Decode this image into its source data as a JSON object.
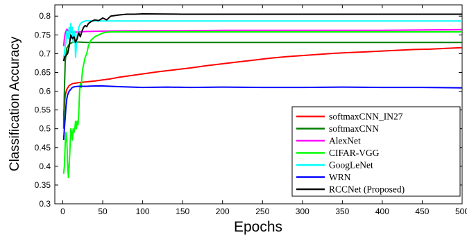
{
  "chart_data": {
    "type": "line",
    "xlabel": "Epochs",
    "ylabel": "Classification Accuracy",
    "xlim": [
      -10,
      500
    ],
    "ylim": [
      0.3,
      0.83
    ],
    "xticks": [
      0,
      50,
      100,
      150,
      200,
      250,
      300,
      350,
      400,
      450,
      500
    ],
    "yticks": [
      0.3,
      0.35,
      0.4,
      0.45,
      0.5,
      0.55,
      0.6,
      0.65,
      0.7,
      0.75,
      0.8
    ],
    "xtick_labels": [
      "0",
      "50",
      "100",
      "150",
      "200",
      "250",
      "300",
      "350",
      "400",
      "450",
      "500"
    ],
    "ytick_labels": [
      "0.3",
      "0.35",
      "0.4",
      "0.45",
      "0.5",
      "0.55",
      "0.6",
      "0.65",
      "0.7",
      "0.75",
      "0.8"
    ],
    "grid": false,
    "legend_position": "bottom-right",
    "series": [
      {
        "name": "softmaxCNN_IN27",
        "color": "#ff0000",
        "x": [
          1,
          2,
          3,
          5,
          8,
          12,
          20,
          30,
          40,
          50,
          60,
          70,
          80,
          90,
          100,
          120,
          140,
          160,
          180,
          200,
          220,
          240,
          260,
          280,
          300,
          320,
          340,
          360,
          380,
          400,
          420,
          440,
          460,
          480,
          500
        ],
        "y": [
          0.535,
          0.56,
          0.59,
          0.605,
          0.615,
          0.62,
          0.623,
          0.625,
          0.627,
          0.63,
          0.633,
          0.637,
          0.64,
          0.643,
          0.646,
          0.652,
          0.657,
          0.662,
          0.668,
          0.673,
          0.678,
          0.683,
          0.688,
          0.692,
          0.695,
          0.698,
          0.701,
          0.703,
          0.705,
          0.707,
          0.709,
          0.711,
          0.712,
          0.714,
          0.716
        ]
      },
      {
        "name": "softmaxCNN",
        "color": "#007f00",
        "x": [
          1,
          2,
          3,
          5,
          8,
          12,
          15,
          20,
          30,
          50,
          100,
          150,
          200,
          250,
          300,
          350,
          400,
          450,
          500
        ],
        "y": [
          0.5,
          0.6,
          0.68,
          0.715,
          0.725,
          0.73,
          0.731,
          0.731,
          0.73,
          0.73,
          0.73,
          0.73,
          0.73,
          0.73,
          0.73,
          0.73,
          0.73,
          0.73,
          0.73
        ]
      },
      {
        "name": "AlexNet",
        "color": "#ff00ff",
        "x": [
          1,
          2,
          3,
          5,
          7,
          10,
          15,
          20,
          30,
          50,
          100,
          150,
          200,
          250,
          300,
          350,
          400,
          450,
          500
        ],
        "y": [
          0.72,
          0.74,
          0.755,
          0.765,
          0.76,
          0.758,
          0.757,
          0.758,
          0.759,
          0.76,
          0.761,
          0.761,
          0.762,
          0.762,
          0.762,
          0.762,
          0.762,
          0.763,
          0.764
        ]
      },
      {
        "name": "CIFAR-VGG",
        "color": "#00ff00",
        "x": [
          1,
          2,
          3,
          4,
          5,
          6,
          7,
          8,
          9,
          10,
          11,
          12,
          13,
          14,
          15,
          16,
          17,
          18,
          19,
          20,
          21,
          22,
          23,
          24,
          25,
          26,
          28,
          30,
          32,
          35,
          40,
          45,
          50,
          55,
          60,
          70,
          80,
          100,
          150,
          200,
          250,
          300,
          350,
          400,
          450,
          500
        ],
        "y": [
          0.38,
          0.4,
          0.46,
          0.49,
          0.47,
          0.41,
          0.37,
          0.4,
          0.45,
          0.5,
          0.49,
          0.47,
          0.5,
          0.49,
          0.5,
          0.52,
          0.5,
          0.52,
          0.51,
          0.54,
          0.6,
          0.62,
          0.61,
          0.64,
          0.66,
          0.67,
          0.69,
          0.7,
          0.72,
          0.735,
          0.745,
          0.75,
          0.755,
          0.757,
          0.758,
          0.758,
          0.758,
          0.758,
          0.758,
          0.758,
          0.758,
          0.758,
          0.758,
          0.758,
          0.758,
          0.758
        ]
      },
      {
        "name": "GoogLeNet",
        "color": "#00ffff",
        "x": [
          1,
          2,
          3,
          4,
          5,
          6,
          7,
          8,
          9,
          10,
          11,
          12,
          13,
          14,
          15,
          16,
          18,
          20,
          22,
          25,
          30,
          35,
          40,
          50,
          100,
          150,
          200,
          250,
          300,
          350,
          400,
          450,
          500
        ],
        "y": [
          0.69,
          0.7,
          0.72,
          0.73,
          0.76,
          0.75,
          0.74,
          0.77,
          0.75,
          0.78,
          0.76,
          0.77,
          0.73,
          0.75,
          0.76,
          0.69,
          0.75,
          0.77,
          0.78,
          0.785,
          0.788,
          0.787,
          0.787,
          0.787,
          0.787,
          0.787,
          0.787,
          0.787,
          0.787,
          0.787,
          0.787,
          0.787,
          0.787
        ]
      },
      {
        "name": "WRN",
        "color": "#0000ff",
        "x": [
          1,
          2,
          3,
          4,
          5,
          6,
          8,
          10,
          12,
          15,
          20,
          30,
          40,
          50,
          70,
          100,
          130,
          160,
          200,
          250,
          300,
          350,
          400,
          450,
          500
        ],
        "y": [
          0.47,
          0.5,
          0.53,
          0.56,
          0.58,
          0.59,
          0.6,
          0.605,
          0.61,
          0.612,
          0.613,
          0.613,
          0.614,
          0.614,
          0.612,
          0.61,
          0.611,
          0.61,
          0.611,
          0.61,
          0.61,
          0.611,
          0.61,
          0.61,
          0.609
        ]
      },
      {
        "name": "RCCNet (Proposed)",
        "color": "#000000",
        "x": [
          1,
          2,
          4,
          6,
          8,
          10,
          12,
          14,
          16,
          18,
          20,
          22,
          24,
          26,
          28,
          30,
          32,
          35,
          40,
          45,
          50,
          55,
          60,
          70,
          80,
          90,
          100,
          150,
          200,
          250,
          300,
          350,
          400,
          450,
          500
        ],
        "y": [
          0.68,
          0.69,
          0.695,
          0.7,
          0.72,
          0.75,
          0.74,
          0.745,
          0.73,
          0.74,
          0.755,
          0.745,
          0.76,
          0.77,
          0.775,
          0.772,
          0.78,
          0.785,
          0.79,
          0.788,
          0.795,
          0.79,
          0.8,
          0.803,
          0.805,
          0.805,
          0.806,
          0.805,
          0.805,
          0.805,
          0.805,
          0.805,
          0.805,
          0.805,
          0.805
        ]
      }
    ]
  }
}
